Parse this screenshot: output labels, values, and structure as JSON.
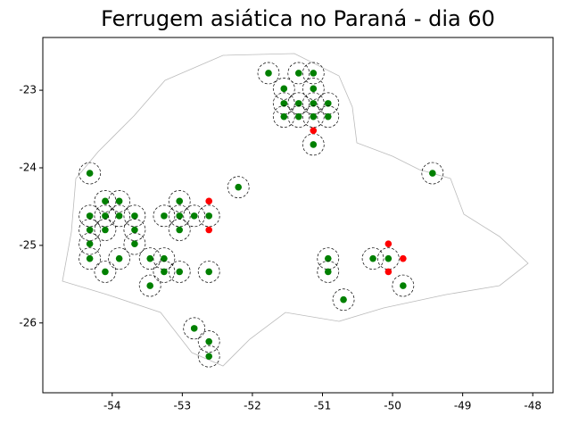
{
  "chart_data": {
    "type": "scatter",
    "title": "Ferrugem asiática no Paraná - dia 60",
    "xlim": [
      -54.99,
      -47.71
    ],
    "ylim": [
      -26.9,
      -22.32
    ],
    "xticks": [
      -54,
      -53,
      -52,
      -51,
      -50,
      -49,
      -48
    ],
    "yticks": [
      -23,
      -24,
      -25,
      -26
    ],
    "series": [
      {
        "color": "#008000",
        "x": [
          -51.77,
          -51.34,
          -51.13,
          -51.55,
          -51.13,
          -51.55,
          -51.34,
          -51.13,
          -50.92,
          -51.55,
          -51.34,
          -51.13,
          -50.92,
          -51.13,
          -54.32,
          -49.43,
          -52.2,
          -54.1,
          -53.9,
          -53.04,
          -54.32,
          -54.1,
          -53.9,
          -53.68,
          -53.26,
          -53.04,
          -52.83,
          -52.62,
          -54.32,
          -54.1,
          -53.68,
          -53.04,
          -54.32,
          -53.68,
          -54.32,
          -53.9,
          -53.46,
          -53.26,
          -50.92,
          -50.06,
          -50.28,
          -54.1,
          -53.26,
          -53.04,
          -52.62,
          -50.92,
          -53.46,
          -49.85,
          -50.7,
          -52.83,
          -52.62,
          -52.62
        ],
        "values": [
          -22.78,
          -22.78,
          -22.78,
          -22.98,
          -22.98,
          -23.17,
          -23.17,
          -23.17,
          -23.17,
          -23.34,
          -23.34,
          -23.34,
          -23.34,
          -23.7,
          -24.07,
          -24.07,
          -24.25,
          -24.43,
          -24.43,
          -24.43,
          -24.62,
          -24.62,
          -24.62,
          -24.62,
          -24.62,
          -24.62,
          -24.62,
          -24.62,
          -24.8,
          -24.8,
          -24.8,
          -24.8,
          -24.98,
          -24.98,
          -25.17,
          -25.17,
          -25.17,
          -25.17,
          -25.17,
          -25.17,
          -25.17,
          -25.34,
          -25.34,
          -25.34,
          -25.34,
          -25.34,
          -25.52,
          -25.52,
          -25.7,
          -26.07,
          -26.24,
          -26.43
        ]
      },
      {
        "color": "#ff0000",
        "x": [
          -52.62,
          -52.62,
          -51.13,
          -50.06,
          -49.85,
          -50.06
        ],
        "values": [
          -24.43,
          -24.8,
          -23.52,
          -24.98,
          -25.17,
          -25.34
        ]
      }
    ]
  }
}
